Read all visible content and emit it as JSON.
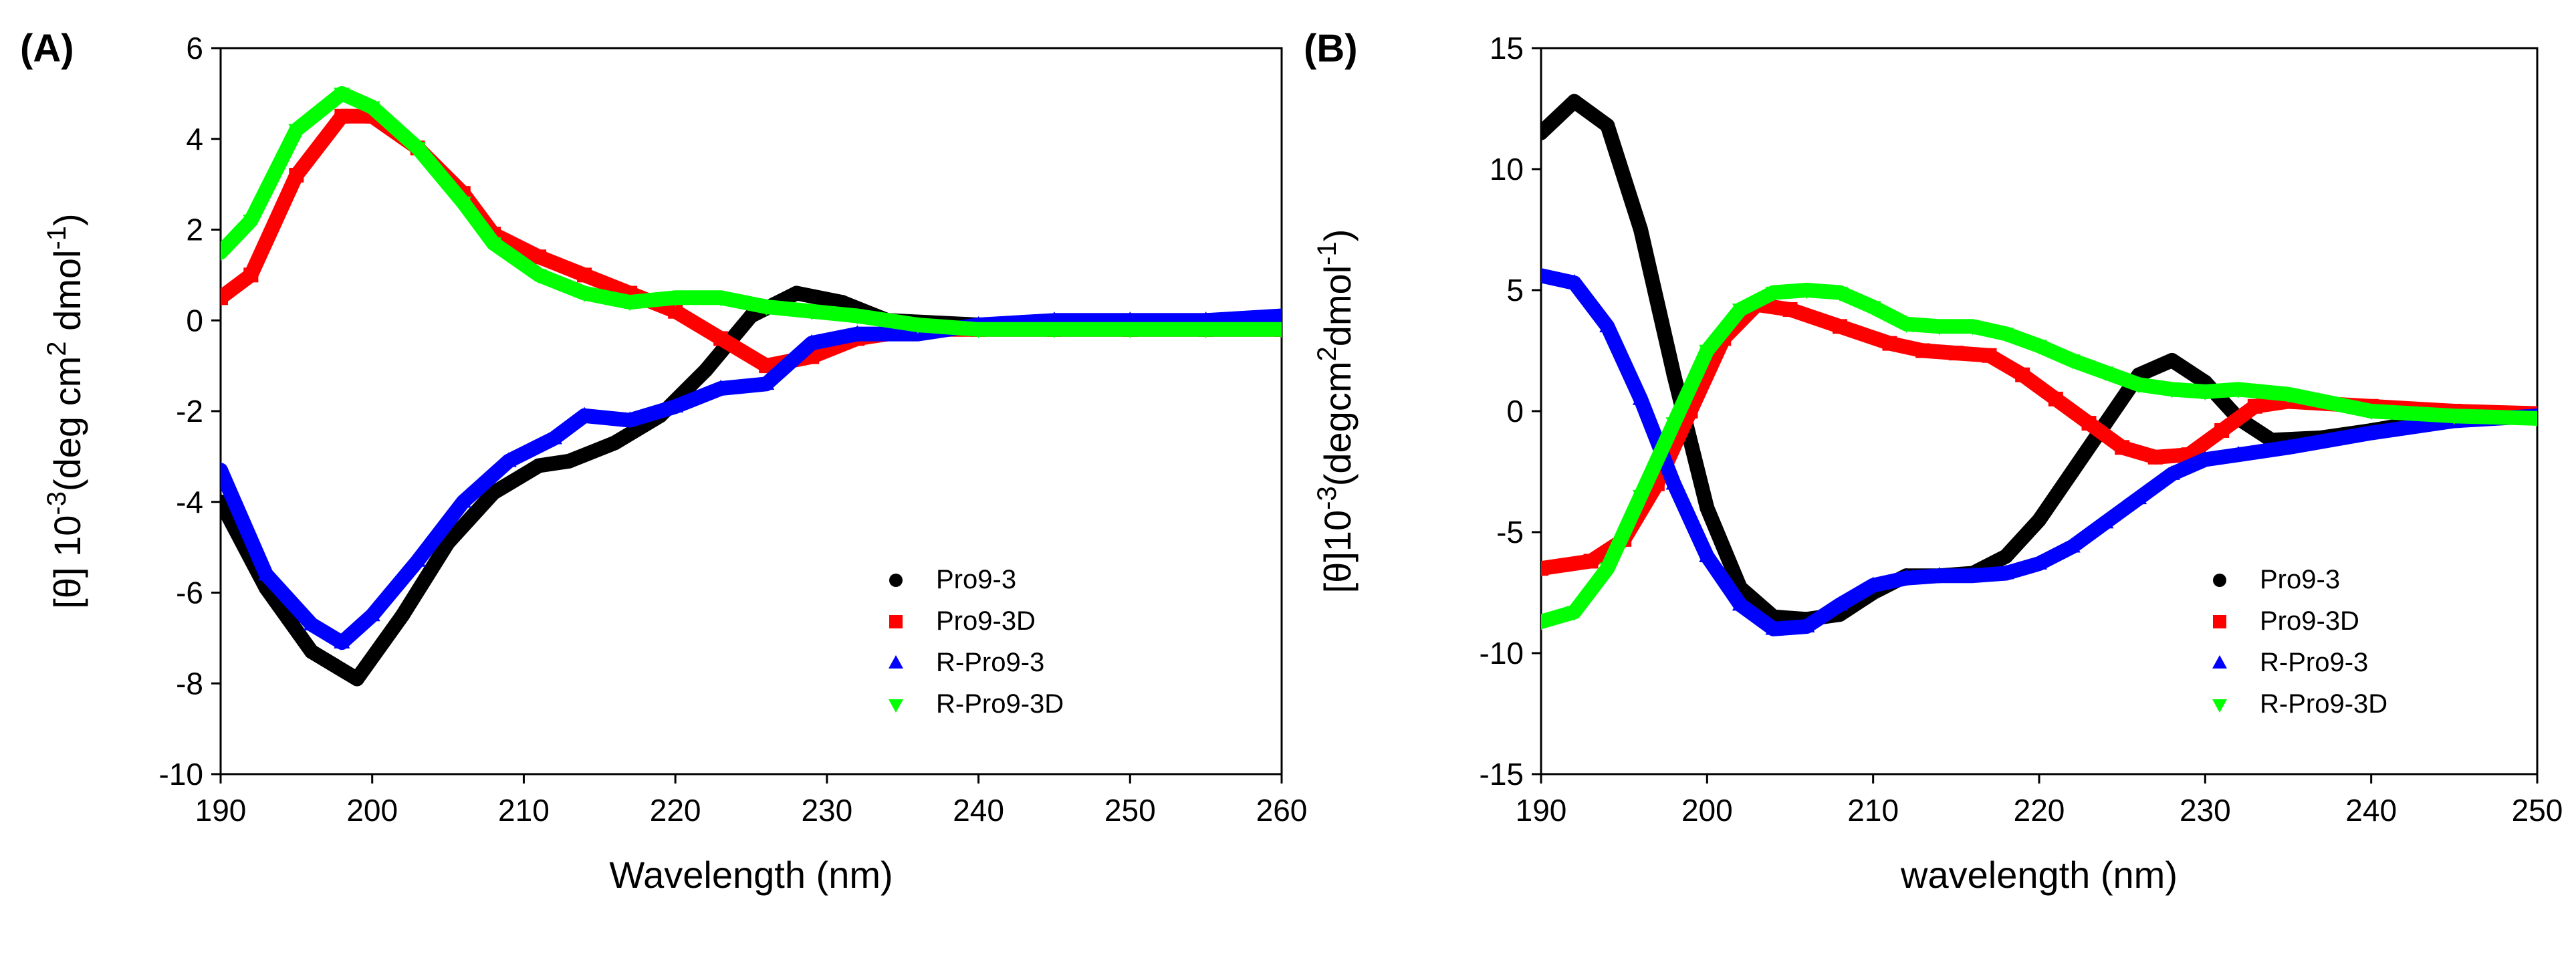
{
  "chart_data": [
    {
      "type": "line",
      "panel_label": "(A)",
      "xlabel": "Wavelength (nm)",
      "ylabel": "[θ] 10-3(deg cm2 dmol-1)",
      "xlim": [
        190,
        260
      ],
      "ylim": [
        -10,
        6
      ],
      "xticks": [
        190,
        200,
        210,
        220,
        230,
        240,
        250,
        260
      ],
      "yticks": [
        -10,
        -8,
        -6,
        -4,
        -2,
        0,
        2,
        4,
        6
      ],
      "legend_position": "bottom-right",
      "series": [
        {
          "name": "Pro9-3",
          "color": "#000000",
          "marker": "circle",
          "x": [
            190,
            193,
            196,
            199,
            202,
            205,
            208,
            211,
            213,
            216,
            219,
            222,
            225,
            228,
            231,
            234,
            240,
            245,
            250,
            255,
            260
          ],
          "y": [
            -4.0,
            -5.9,
            -7.3,
            -7.9,
            -6.5,
            -4.9,
            -3.8,
            -3.2,
            -3.1,
            -2.7,
            -2.1,
            -1.1,
            0.1,
            0.6,
            0.4,
            0.0,
            -0.1,
            -0.1,
            -0.1,
            0.0,
            0.0
          ]
        },
        {
          "name": "Pro9-3D",
          "color": "#ff0000",
          "marker": "square",
          "x": [
            190,
            192,
            195,
            198,
            200,
            203,
            206,
            208,
            211,
            214,
            217,
            220,
            223,
            226,
            229,
            232,
            236,
            240,
            245,
            250,
            255,
            260
          ],
          "y": [
            0.5,
            1.0,
            3.2,
            4.5,
            4.5,
            3.8,
            2.8,
            1.9,
            1.4,
            1.0,
            0.6,
            0.2,
            -0.4,
            -1.0,
            -0.8,
            -0.4,
            -0.2,
            -0.2,
            -0.2,
            -0.2,
            -0.2,
            -0.2
          ]
        },
        {
          "name": "R-Pro9-3",
          "color": "#0000ff",
          "marker": "triangle-up",
          "x": [
            190,
            193,
            196,
            198,
            200,
            203,
            206,
            209,
            212,
            214,
            217,
            220,
            223,
            226,
            229,
            232,
            236,
            240,
            245,
            250,
            255,
            260
          ],
          "y": [
            -3.3,
            -5.6,
            -6.7,
            -7.1,
            -6.5,
            -5.3,
            -4.0,
            -3.1,
            -2.6,
            -2.1,
            -2.2,
            -1.9,
            -1.5,
            -1.4,
            -0.5,
            -0.3,
            -0.3,
            -0.1,
            0.0,
            0.0,
            0.0,
            0.1
          ]
        },
        {
          "name": "R-Pro9-3D",
          "color": "#00ff00",
          "marker": "triangle-down",
          "x": [
            190,
            192,
            195,
            198,
            200,
            203,
            206,
            208,
            211,
            214,
            217,
            220,
            223,
            226,
            229,
            232,
            236,
            240,
            245,
            250,
            255,
            260
          ],
          "y": [
            1.5,
            2.2,
            4.2,
            5.0,
            4.7,
            3.8,
            2.6,
            1.7,
            1.0,
            0.6,
            0.4,
            0.5,
            0.5,
            0.3,
            0.2,
            0.1,
            -0.1,
            -0.2,
            -0.2,
            -0.2,
            -0.2,
            -0.2
          ]
        }
      ]
    },
    {
      "type": "line",
      "panel_label": "(B)",
      "xlabel": "wavelength (nm)",
      "ylabel": "[θ]10-3(degcm2dmol-1)",
      "xlim": [
        190,
        250
      ],
      "ylim": [
        -15,
        15
      ],
      "xticks": [
        190,
        200,
        210,
        220,
        230,
        240,
        250
      ],
      "yticks": [
        -15,
        -10,
        -5,
        0,
        5,
        10,
        15
      ],
      "legend_position": "bottom-right",
      "series": [
        {
          "name": "Pro9-3",
          "color": "#000000",
          "marker": "circle",
          "x": [
            190,
            192,
            194,
            196,
            198,
            200,
            202,
            204,
            206,
            208,
            210,
            212,
            214,
            216,
            218,
            220,
            222,
            224,
            226,
            228,
            230,
            232,
            234,
            237,
            240,
            245,
            250
          ],
          "y": [
            11.5,
            12.8,
            11.8,
            7.5,
            1.5,
            -4.0,
            -7.3,
            -8.5,
            -8.6,
            -8.4,
            -7.5,
            -6.8,
            -6.8,
            -6.7,
            -6.0,
            -4.5,
            -2.5,
            -0.5,
            1.5,
            2.1,
            1.2,
            -0.3,
            -1.2,
            -1.1,
            -0.8,
            -0.2,
            -0.2
          ]
        },
        {
          "name": "Pro9-3D",
          "color": "#ff0000",
          "marker": "square",
          "x": [
            190,
            193,
            195,
            197,
            199,
            201,
            203,
            205,
            208,
            211,
            213,
            215,
            217,
            219,
            221,
            223,
            225,
            227,
            229,
            231,
            233,
            235,
            240,
            245,
            250
          ],
          "y": [
            -6.5,
            -6.2,
            -5.3,
            -3.0,
            0.0,
            3.0,
            4.4,
            4.2,
            3.5,
            2.8,
            2.5,
            2.4,
            2.3,
            1.5,
            0.5,
            -0.5,
            -1.5,
            -1.9,
            -1.8,
            -0.8,
            0.2,
            0.4,
            0.2,
            0.0,
            -0.1
          ]
        },
        {
          "name": "R-Pro9-3",
          "color": "#0000ff",
          "marker": "triangle-up",
          "x": [
            190,
            192,
            194,
            196,
            198,
            200,
            202,
            204,
            206,
            208,
            210,
            212,
            214,
            216,
            218,
            220,
            222,
            224,
            226,
            228,
            230,
            232,
            235,
            240,
            245,
            250
          ],
          "y": [
            5.6,
            5.3,
            3.5,
            0.5,
            -3.0,
            -6.0,
            -8.0,
            -9.0,
            -8.9,
            -8.0,
            -7.2,
            -6.9,
            -6.8,
            -6.8,
            -6.7,
            -6.3,
            -5.6,
            -4.6,
            -3.6,
            -2.6,
            -2.0,
            -1.8,
            -1.5,
            -0.9,
            -0.4,
            -0.2
          ]
        },
        {
          "name": "R-Pro9-3D",
          "color": "#00ff00",
          "marker": "triangle-down",
          "x": [
            190,
            192,
            194,
            196,
            198,
            200,
            202,
            204,
            206,
            208,
            210,
            212,
            214,
            216,
            218,
            220,
            222,
            224,
            226,
            228,
            230,
            232,
            235,
            240,
            245,
            250
          ],
          "y": [
            -8.7,
            -8.3,
            -6.5,
            -3.5,
            -0.5,
            2.5,
            4.2,
            4.9,
            5.0,
            4.9,
            4.3,
            3.6,
            3.5,
            3.5,
            3.2,
            2.7,
            2.1,
            1.6,
            1.1,
            0.9,
            0.8,
            0.9,
            0.7,
            0.0,
            -0.2,
            -0.3
          ]
        }
      ]
    }
  ]
}
